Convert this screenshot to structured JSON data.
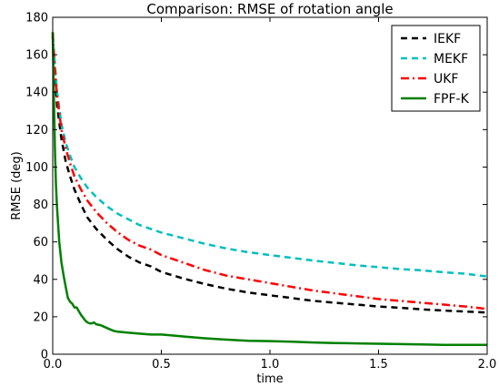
{
  "chart_data": {
    "type": "line",
    "title": "Comparison: RMSE of rotation angle",
    "xlabel": "time",
    "ylabel": "RMSE (deg)",
    "xlim": [
      0.0,
      2.0
    ],
    "ylim": [
      0,
      180
    ],
    "xticks": [
      "0.0",
      "0.5",
      "1.0",
      "1.5",
      "2.0"
    ],
    "yticks": [
      "0",
      "20",
      "40",
      "60",
      "80",
      "100",
      "120",
      "140",
      "160",
      "180"
    ],
    "legend_position": "top-right",
    "grid": false,
    "series": [
      {
        "name": "IEKF",
        "color": "#000000",
        "style": "dashed",
        "x": [
          0.0,
          0.01,
          0.02,
          0.04,
          0.06,
          0.08,
          0.1,
          0.13,
          0.16,
          0.2,
          0.25,
          0.3,
          0.35,
          0.4,
          0.45,
          0.5,
          0.6,
          0.7,
          0.8,
          0.9,
          1.0,
          1.1,
          1.2,
          1.3,
          1.4,
          1.5,
          1.6,
          1.7,
          1.8,
          1.9,
          2.0
        ],
        "y": [
          170,
          150,
          133,
          115,
          103,
          95,
          88,
          80,
          73,
          67,
          61,
          56,
          52,
          49,
          47,
          44,
          40.5,
          37.5,
          35,
          33,
          31.5,
          30,
          28.5,
          27.5,
          26.5,
          25.5,
          24.8,
          24,
          23.3,
          22.8,
          22.3
        ]
      },
      {
        "name": "MEKF",
        "color": "#00bfbf",
        "style": "dashed",
        "x": [
          0.0,
          0.01,
          0.02,
          0.04,
          0.06,
          0.08,
          0.1,
          0.13,
          0.16,
          0.2,
          0.25,
          0.3,
          0.35,
          0.4,
          0.45,
          0.5,
          0.6,
          0.7,
          0.8,
          0.9,
          1.0,
          1.1,
          1.2,
          1.3,
          1.4,
          1.5,
          1.6,
          1.7,
          1.8,
          1.9,
          2.0
        ],
        "y": [
          170,
          155,
          140,
          123,
          113,
          106,
          100,
          94,
          89,
          84,
          79,
          75,
          72,
          69,
          67,
          65,
          62,
          59,
          56.5,
          54.5,
          53,
          51.5,
          50,
          48.8,
          47.5,
          46.5,
          45.5,
          44.8,
          43.8,
          43,
          41.5
        ]
      },
      {
        "name": "UKF",
        "color": "#ff0000",
        "style": "dashdot",
        "x": [
          0.0,
          0.01,
          0.02,
          0.04,
          0.06,
          0.08,
          0.1,
          0.13,
          0.16,
          0.2,
          0.25,
          0.3,
          0.35,
          0.4,
          0.45,
          0.5,
          0.6,
          0.7,
          0.8,
          0.9,
          1.0,
          1.1,
          1.2,
          1.3,
          1.4,
          1.5,
          1.6,
          1.7,
          1.8,
          1.9,
          2.0
        ],
        "y": [
          172,
          152,
          138,
          120,
          110,
          102,
          95,
          88,
          82,
          76,
          70,
          65,
          61,
          58,
          56,
          53,
          49,
          45,
          42,
          40,
          38,
          36,
          34,
          32.5,
          31,
          29.5,
          28.5,
          27.5,
          26.5,
          25.5,
          24.2
        ]
      },
      {
        "name": "FPF-K",
        "color": "#008000",
        "style": "solid",
        "x": [
          0.0,
          0.005,
          0.01,
          0.015,
          0.02,
          0.03,
          0.04,
          0.05,
          0.06,
          0.07,
          0.08,
          0.09,
          0.1,
          0.11,
          0.12,
          0.13,
          0.14,
          0.15,
          0.16,
          0.17,
          0.18,
          0.19,
          0.2,
          0.22,
          0.24,
          0.26,
          0.28,
          0.3,
          0.35,
          0.4,
          0.45,
          0.5,
          0.55,
          0.6,
          0.7,
          0.8,
          0.9,
          1.0,
          1.1,
          1.2,
          1.3,
          1.4,
          1.5,
          1.6,
          1.7,
          1.8,
          1.9,
          2.0
        ],
        "y": [
          172,
          140,
          110,
          90,
          78,
          60,
          49,
          42,
          36,
          30,
          28,
          27,
          25,
          25,
          23,
          21,
          19.5,
          18,
          17,
          16.5,
          16.5,
          17,
          16,
          15.5,
          14.5,
          13.5,
          12.5,
          12,
          11.5,
          11,
          10.5,
          10.5,
          10,
          9.5,
          8.5,
          7.8,
          7.2,
          7,
          6.7,
          6.3,
          6,
          5.8,
          5.6,
          5.4,
          5.2,
          5,
          5,
          5
        ]
      }
    ]
  }
}
